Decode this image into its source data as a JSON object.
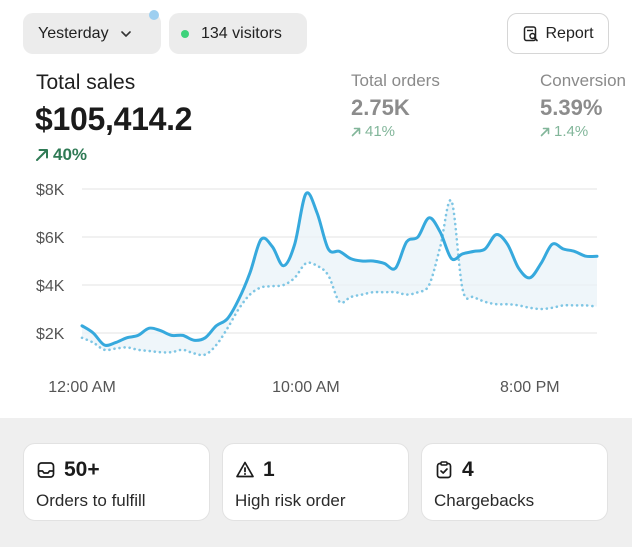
{
  "filters": {
    "date_label": "Yesterday",
    "visitors_label": "134 visitors"
  },
  "report_button": {
    "label": "Report"
  },
  "total_sales": {
    "title": "Total sales",
    "value": "$105,414.2",
    "change": "40%"
  },
  "total_orders": {
    "title": "Total orders",
    "value": "2.75K",
    "change": "41%"
  },
  "conversion": {
    "title": "Conversion",
    "value": "5.39%",
    "change": "1.4%"
  },
  "colors": {
    "accent_line": "#36a9dd",
    "comparison_line": "#7fc6e4",
    "delta_positive": "#2f7a55"
  },
  "chart_data": {
    "type": "line",
    "y_tick_labels": [
      "$8K",
      "$6K",
      "$4K",
      "$2K"
    ],
    "y_ticks": [
      8000,
      6000,
      4000,
      2000
    ],
    "ylim": [
      0,
      8000
    ],
    "x_tick_labels": [
      "12:00 AM",
      "10:00 AM",
      "8:00 PM"
    ],
    "x_tick_positions": [
      0,
      10,
      20
    ],
    "xlim": [
      0,
      23
    ],
    "grid": true,
    "series": [
      {
        "style": "solid",
        "x": [
          0,
          0.5,
          1,
          1.5,
          2,
          2.5,
          3,
          3.5,
          4,
          4.5,
          5,
          5.5,
          6,
          6.5,
          7,
          7.5,
          8,
          8.5,
          9,
          9.5,
          10,
          10.5,
          11,
          11.5,
          12,
          12.5,
          13,
          13.5,
          14,
          14.5,
          15,
          15.5,
          16,
          16.5,
          17,
          17.5,
          18,
          18.5,
          19,
          19.5,
          20,
          20.5,
          21,
          21.5,
          22,
          22.5,
          23
        ],
        "values": [
          2300,
          2000,
          1500,
          1600,
          1800,
          1900,
          2200,
          2100,
          1900,
          1900,
          1700,
          1800,
          2300,
          2600,
          3400,
          4500,
          5900,
          5600,
          4800,
          5700,
          7800,
          7000,
          5500,
          5400,
          5100,
          5000,
          5000,
          4900,
          4700,
          5800,
          6000,
          6800,
          6200,
          5100,
          5300,
          5400,
          5500,
          6100,
          5700,
          4700,
          4300,
          4900,
          5700,
          5500,
          5400,
          5200,
          5200
        ]
      },
      {
        "style": "dotted",
        "x": [
          0,
          0.5,
          1,
          1.5,
          2,
          2.5,
          3,
          3.5,
          4,
          4.5,
          5,
          5.5,
          6,
          6.5,
          7,
          7.5,
          8,
          8.5,
          9,
          9.5,
          10,
          10.5,
          11,
          11.5,
          12,
          12.5,
          13,
          13.5,
          14,
          14.5,
          15,
          15.5,
          16,
          16.5,
          17,
          17.5,
          18,
          18.5,
          19,
          19.5,
          20,
          20.5,
          21,
          21.5,
          22,
          22.5,
          23
        ],
        "values": [
          1800,
          1600,
          1300,
          1350,
          1400,
          1300,
          1250,
          1200,
          1200,
          1300,
          1150,
          1100,
          1500,
          2200,
          3000,
          3600,
          3900,
          3950,
          4000,
          4300,
          4900,
          4800,
          4400,
          3300,
          3500,
          3600,
          3700,
          3700,
          3700,
          3600,
          3700,
          4000,
          5600,
          7500,
          3800,
          3500,
          3300,
          3200,
          3200,
          3150,
          3050,
          3000,
          3050,
          3150,
          3150,
          3150,
          3100
        ]
      }
    ]
  },
  "summary_cards": [
    {
      "icon": "inbox-icon",
      "value": "50+",
      "label": "Orders to fulfill"
    },
    {
      "icon": "warning-icon",
      "value": "1",
      "label": "High risk order"
    },
    {
      "icon": "clipboard-check-icon",
      "value": "4",
      "label": "Chargebacks"
    }
  ]
}
